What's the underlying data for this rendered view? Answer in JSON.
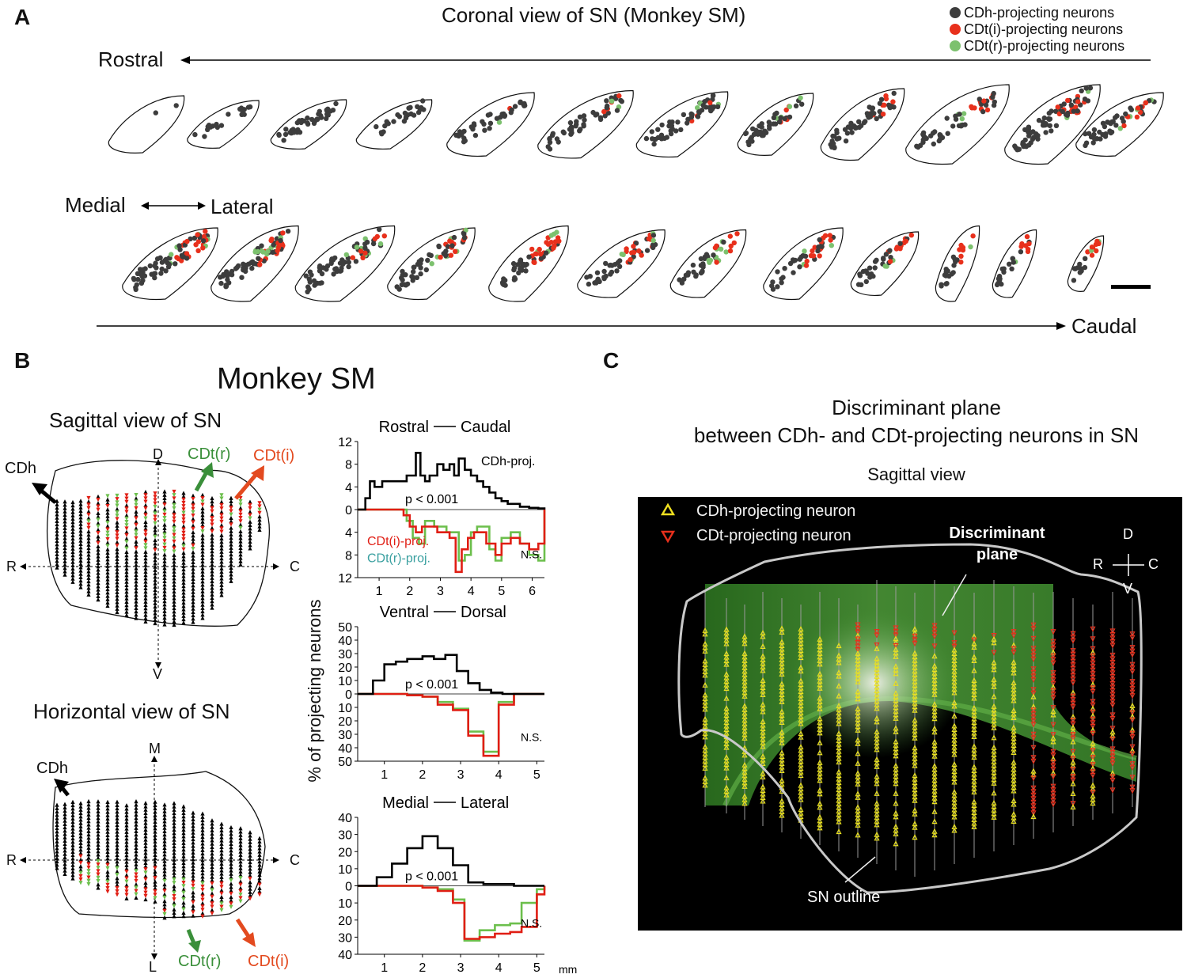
{
  "panelA": {
    "letter": "A",
    "title": "Coronal view of SN (Monkey SM)",
    "legend": [
      {
        "label": "CDh-projecting neurons",
        "color": "#3d3d3d"
      },
      {
        "label": "CDt(i)-projecting neurons",
        "color": "#e8301c"
      },
      {
        "label": "CDt(r)-projecting neurons",
        "color": "#7cc16e"
      }
    ],
    "rostral": "Rostral",
    "caudal": "Caudal",
    "medial": "Medial",
    "lateral": "Lateral"
  },
  "panelB": {
    "letter": "B",
    "title": "Monkey SM",
    "sagittal": {
      "title": "Sagittal view of SN",
      "axisTop": "D",
      "axisBottom": "V",
      "axisLeft": "R",
      "axisRight": "C",
      "arrowCDh": "CDh",
      "arrowCDtr": "CDt(r)",
      "arrowCDti": "CDt(i)"
    },
    "horizontal": {
      "title": "Horizontal view of SN",
      "axisTop": "M",
      "axisBottom": "L",
      "axisLeft": "R",
      "axisRight": "C",
      "arrowCDh": "CDh",
      "arrowCDtr": "CDt(r)",
      "arrowCDti": "CDt(i)"
    },
    "yAxisLabel": "% of projecting neurons",
    "unit": "mm"
  },
  "chart_data": [
    {
      "type": "line",
      "title": "Rostral — Caudal",
      "title_left": "Rostral",
      "title_right": "Caudal",
      "xlabel": "mm",
      "ylabel": "% of projecting neurons",
      "xlim": [
        0.3,
        6.4
      ],
      "xticks": [
        1,
        2,
        3,
        4,
        5,
        6
      ],
      "ylim": [
        -12,
        12
      ],
      "yticks": [
        "12",
        "8",
        "4",
        "0",
        "4",
        "8",
        "12"
      ],
      "stat": "p < 0.001",
      "ns": "N.S.",
      "series": [
        {
          "name": "CDh-proj.",
          "color": "#000000",
          "x": [
            0.3,
            0.55,
            0.7,
            0.85,
            1.1,
            1.35,
            1.6,
            1.9,
            2.2,
            2.35,
            2.5,
            2.65,
            2.9,
            3.1,
            3.3,
            3.45,
            3.6,
            3.8,
            4.0,
            4.2,
            4.4,
            4.6,
            4.8,
            5.0,
            5.2,
            5.4,
            5.6,
            5.9,
            6.2,
            6.4
          ],
          "y": [
            0,
            2,
            5,
            4,
            5,
            5,
            5,
            6,
            10,
            6,
            5,
            6,
            8,
            7,
            8,
            6,
            9,
            7,
            6,
            5,
            4,
            3,
            2,
            1.5,
            1,
            1,
            0.5,
            0.3,
            0.2,
            0
          ]
        },
        {
          "name": "CDt(i)-proj.",
          "color": "#e01e14",
          "x": [
            0.3,
            1.5,
            1.8,
            2.0,
            2.2,
            2.4,
            2.7,
            2.9,
            3.1,
            3.3,
            3.5,
            3.7,
            3.9,
            4.1,
            4.3,
            4.5,
            4.8,
            5.0,
            5.3,
            5.6,
            5.9,
            6.2,
            6.4
          ],
          "y": [
            0,
            0,
            -1,
            -3,
            -4,
            -3,
            -3,
            -4,
            -4,
            -5,
            -11,
            -7,
            -5,
            -4,
            -4,
            -6,
            -8,
            -6,
            -5,
            -6,
            -7,
            -6,
            0
          ]
        },
        {
          "name": "CDt(r)-proj.",
          "color": "#6cbf4c",
          "x": [
            0.3,
            1.6,
            1.9,
            2.1,
            2.3,
            2.5,
            2.8,
            3.0,
            3.2,
            3.4,
            3.6,
            3.8,
            4.0,
            4.2,
            4.4,
            4.6,
            4.8,
            5.0,
            5.3,
            5.6,
            5.9,
            6.2,
            6.4
          ],
          "y": [
            0,
            0,
            -2,
            -5,
            -6,
            -2,
            -3,
            -3,
            -4,
            -4,
            -9,
            -8,
            -4,
            -3,
            -3,
            -7,
            -9,
            -5,
            -4,
            -6,
            -8,
            -9,
            0
          ]
        }
      ],
      "labels": {
        "top": "CDh-proj.",
        "cdti": "CDt(i)-proj.",
        "cdtr": "CDt(r)-proj."
      }
    },
    {
      "type": "line",
      "title": "Ventral — Dorsal",
      "title_left": "Ventral",
      "title_right": "Dorsal",
      "xlim": [
        0.3,
        5.2
      ],
      "xticks": [
        1,
        2,
        3,
        4,
        5
      ],
      "ylim": [
        -50,
        50
      ],
      "yticks": [
        "50",
        "40",
        "30",
        "20",
        "10",
        "0",
        "10",
        "20",
        "30",
        "40",
        "50"
      ],
      "stat": "p < 0.001",
      "ns": "N.S.",
      "series": [
        {
          "name": "CDh-proj.",
          "color": "#000000",
          "x": [
            0.3,
            0.7,
            1.0,
            1.3,
            1.6,
            2.0,
            2.3,
            2.6,
            2.9,
            3.2,
            3.5,
            3.8,
            4.1,
            5.2
          ],
          "y": [
            0,
            10,
            22,
            24,
            26,
            28,
            26,
            29,
            17,
            8,
            3,
            1,
            0,
            0
          ]
        },
        {
          "name": "CDt(i)-proj.",
          "color": "#e01e14",
          "x": [
            0.3,
            1.6,
            2.0,
            2.4,
            2.8,
            3.2,
            3.6,
            4.0,
            4.4,
            5.2
          ],
          "y": [
            0,
            -1,
            -2,
            -8,
            -12,
            -31,
            -46,
            -8,
            0,
            0
          ]
        },
        {
          "name": "CDt(r)-proj.",
          "color": "#6cbf4c",
          "x": [
            0.3,
            1.6,
            2.0,
            2.4,
            2.8,
            3.2,
            3.6,
            4.0,
            4.4,
            5.2
          ],
          "y": [
            0,
            -1,
            -2,
            -6,
            -11,
            -28,
            -43,
            -6,
            0,
            0
          ]
        }
      ]
    },
    {
      "type": "line",
      "title": "Medial — Lateral",
      "title_left": "Medial",
      "title_right": "Lateral",
      "xlim": [
        0.3,
        5.2
      ],
      "xticks": [
        1,
        2,
        3,
        4,
        5
      ],
      "ylim": [
        -40,
        40
      ],
      "yticks": [
        "40",
        "30",
        "20",
        "10",
        "0",
        "10",
        "20",
        "30",
        "40"
      ],
      "stat": "p < 0.001",
      "ns": "N.S.",
      "series": [
        {
          "name": "CDh-proj.",
          "color": "#000000",
          "x": [
            0.3,
            0.8,
            1.2,
            1.6,
            2.0,
            2.4,
            2.8,
            3.2,
            3.6,
            4.0,
            4.4,
            5.2
          ],
          "y": [
            0,
            5,
            13,
            22,
            29,
            22,
            12,
            2,
            1,
            1,
            0,
            0
          ]
        },
        {
          "name": "CDt(i)-proj.",
          "color": "#e01e14",
          "x": [
            0.3,
            2.0,
            2.4,
            2.8,
            3.1,
            3.5,
            3.9,
            4.3,
            4.6,
            5.0,
            5.2
          ],
          "y": [
            0,
            -1,
            -3,
            -10,
            -31,
            -30,
            -28,
            -27,
            -24,
            -5,
            0
          ]
        },
        {
          "name": "CDt(r)-proj.",
          "color": "#6cbf4c",
          "x": [
            0.3,
            2.0,
            2.4,
            2.8,
            3.1,
            3.5,
            3.9,
            4.3,
            4.6,
            5.0,
            5.2
          ],
          "y": [
            0,
            -1,
            -2,
            -8,
            -32,
            -26,
            -23,
            -22,
            -10,
            -2,
            0
          ]
        }
      ]
    }
  ],
  "panelC": {
    "letter": "C",
    "title_line1": "Discriminant plane",
    "title_line2": "between CDh- and CDt-projecting neurons in SN",
    "subtitle": "Sagittal view",
    "legend_cdh": "CDh-projecting neuron",
    "legend_cdt": "CDt-projecting neuron",
    "plane_label_1": "Discriminant",
    "plane_label_2": "plane",
    "outline_label": "SN outline",
    "compass": {
      "d": "D",
      "v": "V",
      "r": "R",
      "c": "C"
    }
  }
}
